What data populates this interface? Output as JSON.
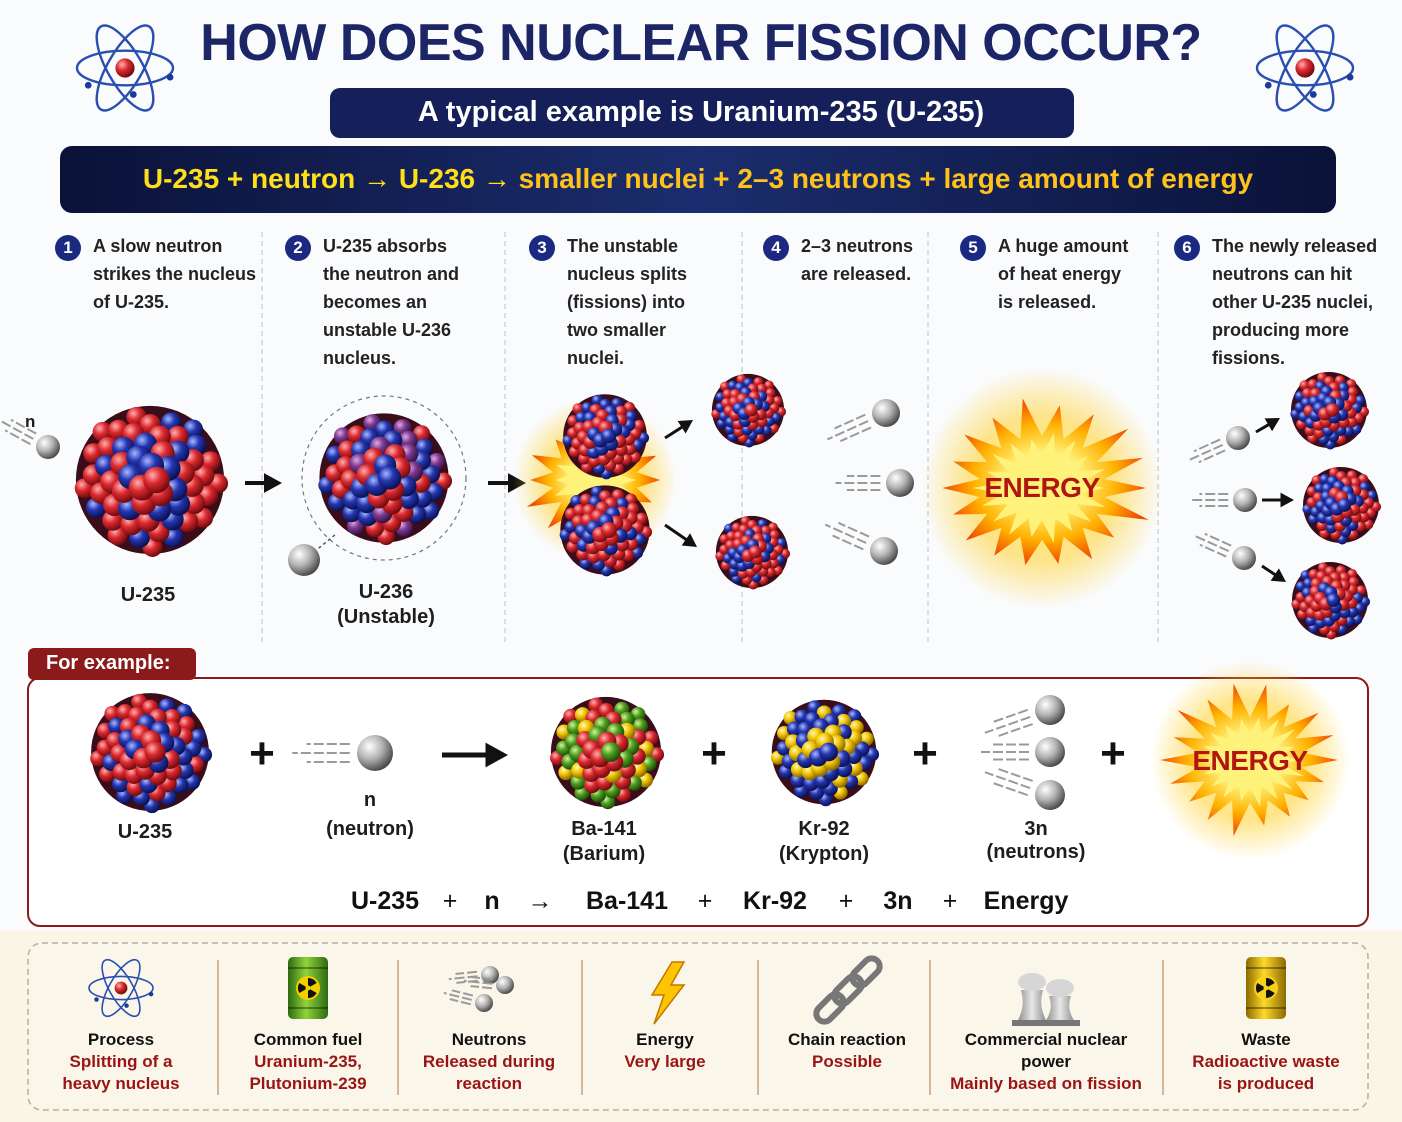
{
  "header": {
    "title": "HOW DOES NUCLEAR FISSION OCCUR?",
    "subtitle": "A typical example is Uranium-235 (U-235)",
    "equation": [
      "U-235 + neutron → U-236 →",
      "smaller nuclei + 2–3 neutrons + large amount of energy"
    ]
  },
  "steps": [
    {
      "number": "1",
      "lines": [
        "A slow neutron",
        "strikes the nucleus",
        "of U-235."
      ]
    },
    {
      "number": "2",
      "lines": [
        "U-235 absorbs",
        "the neutron and",
        "becomes an",
        "unstable U-236",
        "nucleus."
      ]
    },
    {
      "number": "3",
      "lines": [
        "The unstable",
        "nucleus splits",
        "(fissions) into",
        "two smaller",
        "nuclei."
      ]
    },
    {
      "number": "4",
      "lines": [
        "2–3 neutrons",
        "are released."
      ]
    },
    {
      "number": "5",
      "lines": [
        "A huge amount",
        "of heat energy",
        "is released."
      ]
    },
    {
      "number": "6",
      "lines": [
        "The newly released",
        "neutrons can hit",
        "other U-235 nuclei,",
        "producing more",
        "fissions."
      ]
    }
  ],
  "step_labels": {
    "neutron": "n",
    "u235": "U-235",
    "u236": "U-236",
    "u236_note": "(Unstable)",
    "energy": "ENERGY"
  },
  "example": {
    "label": "For example:",
    "items": [
      {
        "lines": [
          "U-235"
        ]
      },
      {
        "lines": [
          "n",
          "(neutron)"
        ]
      },
      {
        "lines": [
          "Ba-141",
          "(Barium)"
        ]
      },
      {
        "lines": [
          "Kr-92",
          "(Krypton)"
        ]
      },
      {
        "lines": [
          "3n",
          "(neutrons)"
        ]
      },
      {
        "lines": [
          "ENERGY"
        ]
      }
    ],
    "operators": [
      "+",
      "+",
      "+",
      "+"
    ],
    "equation": [
      "U-235",
      "+",
      "n",
      "→",
      "Ba-141",
      "+",
      "Kr-92",
      "+",
      "3n",
      "+",
      "Energy"
    ]
  },
  "facts": [
    {
      "title": [
        "Process"
      ],
      "text": [
        "Splitting of a",
        "heavy nucleus"
      ]
    },
    {
      "title": [
        "Common fuel"
      ],
      "text": [
        "Uranium-235,",
        "Plutonium-239"
      ]
    },
    {
      "title": [
        "Neutrons"
      ],
      "text": [
        "Released during",
        "reaction"
      ]
    },
    {
      "title": [
        "Energy"
      ],
      "text": [
        "Very large"
      ]
    },
    {
      "title": [
        "Chain reaction"
      ],
      "text": [
        "Possible"
      ]
    },
    {
      "title": [
        "Commercial nuclear",
        "power"
      ],
      "text": [
        "Mainly based on fission"
      ]
    },
    {
      "title": [
        "Waste"
      ],
      "text": [
        "Radioactive waste",
        "is produced"
      ]
    }
  ]
}
